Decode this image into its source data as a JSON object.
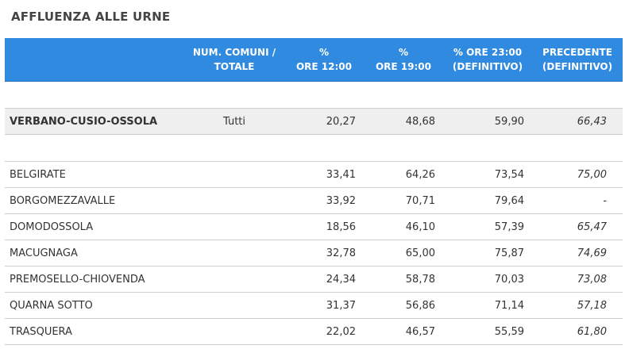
{
  "title": "AFFLUENZA ALLE URNE",
  "header": {
    "comuni": [
      "NUM. COMUNI /",
      "TOTALE"
    ],
    "ore12": [
      "%",
      "ORE 12:00"
    ],
    "ore19": [
      "%",
      "ORE 19:00"
    ],
    "ore23": [
      "% ORE 23:00",
      "(DEFINITIVO)"
    ],
    "precedente": [
      "PRECEDENTE",
      "(DEFINITIVO)"
    ]
  },
  "total": {
    "name": "VERBANO-CUSIO-OSSOLA",
    "comuni": "Tutti",
    "ore12": "20,27",
    "ore19": "48,68",
    "ore23": "59,90",
    "precedente": "66,43"
  },
  "rows": [
    {
      "name": "BELGIRATE",
      "ore12": "33,41",
      "ore19": "64,26",
      "ore23": "73,54",
      "precedente": "75,00"
    },
    {
      "name": "BORGOMEZZAVALLE",
      "ore12": "33,92",
      "ore19": "70,71",
      "ore23": "79,64",
      "precedente": "-"
    },
    {
      "name": "DOMODOSSOLA",
      "ore12": "18,56",
      "ore19": "46,10",
      "ore23": "57,39",
      "precedente": "65,47"
    },
    {
      "name": "MACUGNAGA",
      "ore12": "32,78",
      "ore19": "65,00",
      "ore23": "75,87",
      "precedente": "74,69"
    },
    {
      "name": "PREMOSELLO-CHIOVENDA",
      "ore12": "24,34",
      "ore19": "58,78",
      "ore23": "70,03",
      "precedente": "73,08"
    },
    {
      "name": "QUARNA SOTTO",
      "ore12": "31,37",
      "ore19": "56,86",
      "ore23": "71,14",
      "precedente": "57,18"
    },
    {
      "name": "TRASQUERA",
      "ore12": "22,02",
      "ore19": "46,57",
      "ore23": "55,59",
      "precedente": "61,80"
    }
  ],
  "colors": {
    "header_bg": "#2f8ae0",
    "total_bg": "#efefef"
  }
}
